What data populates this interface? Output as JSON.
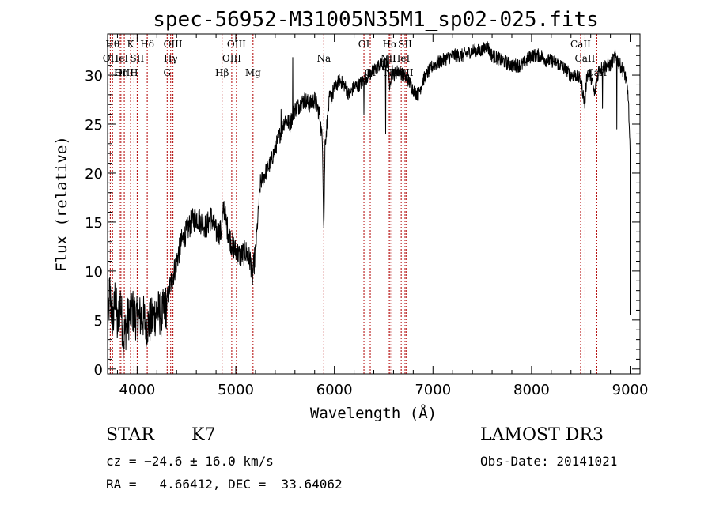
{
  "chart_data": {
    "type": "line",
    "title": "spec-56952-M31005N35M1_sp02-025.fits",
    "xlabel": "Wavelength (Å)",
    "ylabel": "Flux (relative)",
    "xlim": [
      3700,
      9100
    ],
    "ylim": [
      -0.5,
      34.2
    ],
    "xticks": [
      4000,
      5000,
      6000,
      7000,
      8000,
      9000
    ],
    "yticks": [
      0,
      5,
      10,
      15,
      20,
      25,
      30
    ],
    "grid": false,
    "series": [
      {
        "anchors": [
          [
            3700,
            3
          ],
          [
            3720,
            8
          ],
          [
            3740,
            6
          ],
          [
            3760,
            5
          ],
          [
            3780,
            8
          ],
          [
            3800,
            4
          ],
          [
            3830,
            7
          ],
          [
            3860,
            3
          ],
          [
            3900,
            5
          ],
          [
            3950,
            6
          ],
          [
            4000,
            5
          ],
          [
            4050,
            5.5
          ],
          [
            4100,
            4.5
          ],
          [
            4150,
            5
          ],
          [
            4200,
            6
          ],
          [
            4250,
            5.5
          ],
          [
            4300,
            6.5
          ],
          [
            4320,
            8
          ],
          [
            4350,
            9
          ],
          [
            4400,
            11
          ],
          [
            4450,
            13
          ],
          [
            4500,
            14
          ],
          [
            4550,
            15
          ],
          [
            4600,
            15.5
          ],
          [
            4650,
            15
          ],
          [
            4700,
            14.5
          ],
          [
            4750,
            15.5
          ],
          [
            4800,
            14
          ],
          [
            4850,
            14
          ],
          [
            4880,
            16.5
          ],
          [
            4900,
            15
          ],
          [
            4950,
            13
          ],
          [
            5000,
            12
          ],
          [
            5050,
            11.5
          ],
          [
            5100,
            12
          ],
          [
            5150,
            11
          ],
          [
            5170,
            9.5
          ],
          [
            5200,
            12
          ],
          [
            5250,
            19
          ],
          [
            5300,
            20
          ],
          [
            5350,
            21
          ],
          [
            5400,
            22.5
          ],
          [
            5450,
            24
          ],
          [
            5500,
            25.5
          ],
          [
            5550,
            25
          ],
          [
            5580,
            26
          ],
          [
            5600,
            26.5
          ],
          [
            5650,
            27
          ],
          [
            5700,
            27.5
          ],
          [
            5750,
            27
          ],
          [
            5800,
            27.5
          ],
          [
            5850,
            26
          ],
          [
            5880,
            23
          ],
          [
            5893,
            14
          ],
          [
            5905,
            23
          ],
          [
            5950,
            27.5
          ],
          [
            6000,
            28.5
          ],
          [
            6050,
            29.5
          ],
          [
            6100,
            29
          ],
          [
            6150,
            28
          ],
          [
            6200,
            28.8
          ],
          [
            6250,
            29
          ],
          [
            6300,
            29.5
          ],
          [
            6350,
            30
          ],
          [
            6400,
            30.5
          ],
          [
            6450,
            31
          ],
          [
            6500,
            31
          ],
          [
            6550,
            31.5
          ],
          [
            6563,
            28
          ],
          [
            6580,
            31
          ],
          [
            6600,
            30
          ],
          [
            6650,
            30.5
          ],
          [
            6700,
            30
          ],
          [
            6750,
            29.5
          ],
          [
            6800,
            28.5
          ],
          [
            6850,
            28
          ],
          [
            6900,
            29.5
          ],
          [
            7000,
            31
          ],
          [
            7100,
            31.5
          ],
          [
            7200,
            32
          ],
          [
            7300,
            32
          ],
          [
            7400,
            32.5
          ],
          [
            7500,
            32.5
          ],
          [
            7550,
            33
          ],
          [
            7600,
            32
          ],
          [
            7700,
            31.5
          ],
          [
            7800,
            31
          ],
          [
            7900,
            31
          ],
          [
            8000,
            32
          ],
          [
            8100,
            32
          ],
          [
            8150,
            31.5
          ],
          [
            8200,
            31.5
          ],
          [
            8300,
            31
          ],
          [
            8400,
            30
          ],
          [
            8450,
            30
          ],
          [
            8500,
            29.5
          ],
          [
            8540,
            27
          ],
          [
            8560,
            30
          ],
          [
            8600,
            30
          ],
          [
            8640,
            28
          ],
          [
            8680,
            30.5
          ],
          [
            8750,
            31
          ],
          [
            8800,
            31
          ],
          [
            8850,
            32
          ],
          [
            8900,
            31
          ],
          [
            8950,
            30
          ],
          [
            8980,
            28
          ],
          [
            9000,
            22
          ]
        ],
        "spikes": [
          [
            5577,
            31.8
          ],
          [
            6300,
            26
          ],
          [
            5460,
            26.5
          ]
        ],
        "dips": [
          [
            6520,
            24
          ],
          [
            8865,
            24.5
          ],
          [
            8720,
            26.6
          ]
        ]
      }
    ],
    "spectral_lines": [
      {
        "wl": 3727,
        "label": "OII",
        "row": 2
      },
      {
        "wl": 3750,
        "label": "Hθ",
        "row": 1
      },
      {
        "wl": 3820,
        "label": "HeI",
        "row": 2
      },
      {
        "wl": 3835,
        "label": "Hη",
        "row": 3
      },
      {
        "wl": 3869,
        "label": "OIII",
        "row": 3
      },
      {
        "wl": 3933,
        "label": "K",
        "row": 1
      },
      {
        "wl": 3968,
        "label": "H",
        "row": 3
      },
      {
        "wl": 4000,
        "label": "SII",
        "row": 2
      },
      {
        "wl": 4102,
        "label": "Hδ",
        "row": 1
      },
      {
        "wl": 4304,
        "label": "G",
        "row": 3
      },
      {
        "wl": 4340,
        "label": "Hγ",
        "row": 2
      },
      {
        "wl": 4363,
        "label": "OIII",
        "row": 1
      },
      {
        "wl": 4861,
        "label": "Hβ",
        "row": 3
      },
      {
        "wl": 4959,
        "label": "OIII",
        "row": 2
      },
      {
        "wl": 5007,
        "label": "OIII",
        "row": 1
      },
      {
        "wl": 5175,
        "label": "Mg",
        "row": 3
      },
      {
        "wl": 5893,
        "label": "Na",
        "row": 2
      },
      {
        "wl": 6300,
        "label": "OI",
        "row": 1
      },
      {
        "wl": 6364,
        "label": "OI",
        "row": 3
      },
      {
        "wl": 6548,
        "label": "NII",
        "row": 2
      },
      {
        "wl": 6563,
        "label": "Hα",
        "row": 1
      },
      {
        "wl": 6583,
        "label": "NII",
        "row": 3
      },
      {
        "wl": 6678,
        "label": "HeI",
        "row": 2
      },
      {
        "wl": 6717,
        "label": "SII",
        "row": 1
      },
      {
        "wl": 6731,
        "label": "SII",
        "row": 3
      },
      {
        "wl": 8498,
        "label": "CaII",
        "row": 1
      },
      {
        "wl": 8542,
        "label": "CaII",
        "row": 2
      },
      {
        "wl": 8662,
        "label": "CaII",
        "row": 3
      }
    ]
  },
  "info": {
    "class": "STAR",
    "subclass": "K7",
    "survey": "LAMOST DR3",
    "cz": "cz = −24.6 ± 16.0 km/s",
    "obs_date": "Obs-Date: 20141021",
    "radec": "RA =   4.66412, DEC =  33.64062"
  }
}
